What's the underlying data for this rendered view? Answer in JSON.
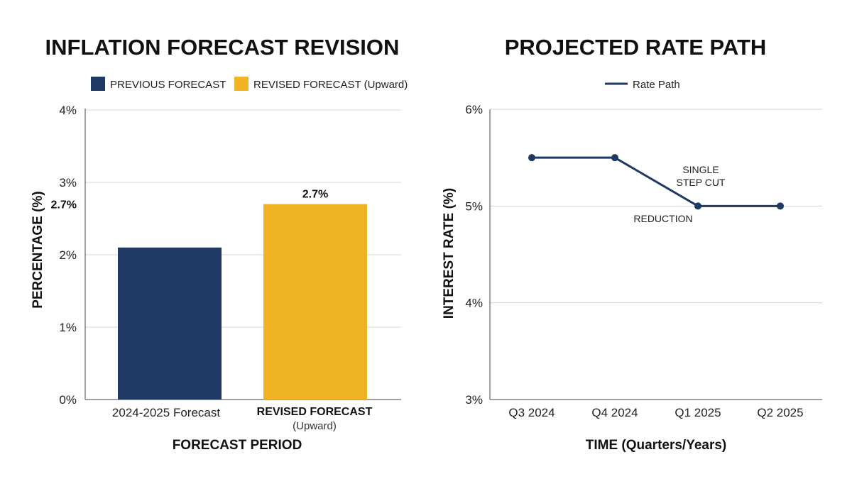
{
  "chart_data": [
    {
      "type": "bar",
      "title": "INFLATION FORECAST REVISION",
      "xlabel": "FORECAST PERIOD",
      "ylabel": "PERCENTAGE (%)",
      "ylim": [
        0,
        4
      ],
      "y_ticks": [
        {
          "value": 0,
          "label": "0%"
        },
        {
          "value": 1,
          "label": "1%"
        },
        {
          "value": 2,
          "label": "2%"
        },
        {
          "value": 3,
          "label": "3%"
        },
        {
          "value": 4,
          "label": "4%"
        }
      ],
      "highlight_tick": {
        "value": 2.7,
        "label": "2.7%"
      },
      "grid": true,
      "legend_position": "top",
      "legend": [
        {
          "label": "PREVIOUS FORECAST",
          "color": "#1f3864"
        },
        {
          "label": "REVISED FORECAST (Upward)",
          "color": "#f0b323"
        }
      ],
      "bars": [
        {
          "category": "2024-2025 Forecast",
          "category_sub": "",
          "value": 2.1,
          "color": "#1f3864",
          "data_label": ""
        },
        {
          "category": "REVISED FORECAST",
          "category_sub": "(Upward)",
          "value": 2.7,
          "color": "#f0b323",
          "data_label": "2.7%"
        }
      ]
    },
    {
      "type": "line",
      "title": "PROJECTED RATE PATH",
      "xlabel": "TIME (Quarters/Years)",
      "ylabel": "INTEREST RATE (%)",
      "ylim": [
        3,
        6
      ],
      "y_ticks": [
        {
          "value": 3,
          "label": "3%"
        },
        {
          "value": 4,
          "label": "4%"
        },
        {
          "value": 5,
          "label": "5%"
        },
        {
          "value": 6,
          "label": "6%"
        }
      ],
      "grid": true,
      "legend_position": "top",
      "categories": [
        "Q3 2024",
        "Q4 2024",
        "Q1 2025",
        "Q2 2025"
      ],
      "series": [
        {
          "name": "Rate Path",
          "color": "#1f3864",
          "values": [
            5.5,
            5.5,
            5.0,
            5.0
          ]
        }
      ],
      "annotations": [
        "SINGLE",
        "STEP CUT",
        "REDUCTION"
      ]
    }
  ]
}
